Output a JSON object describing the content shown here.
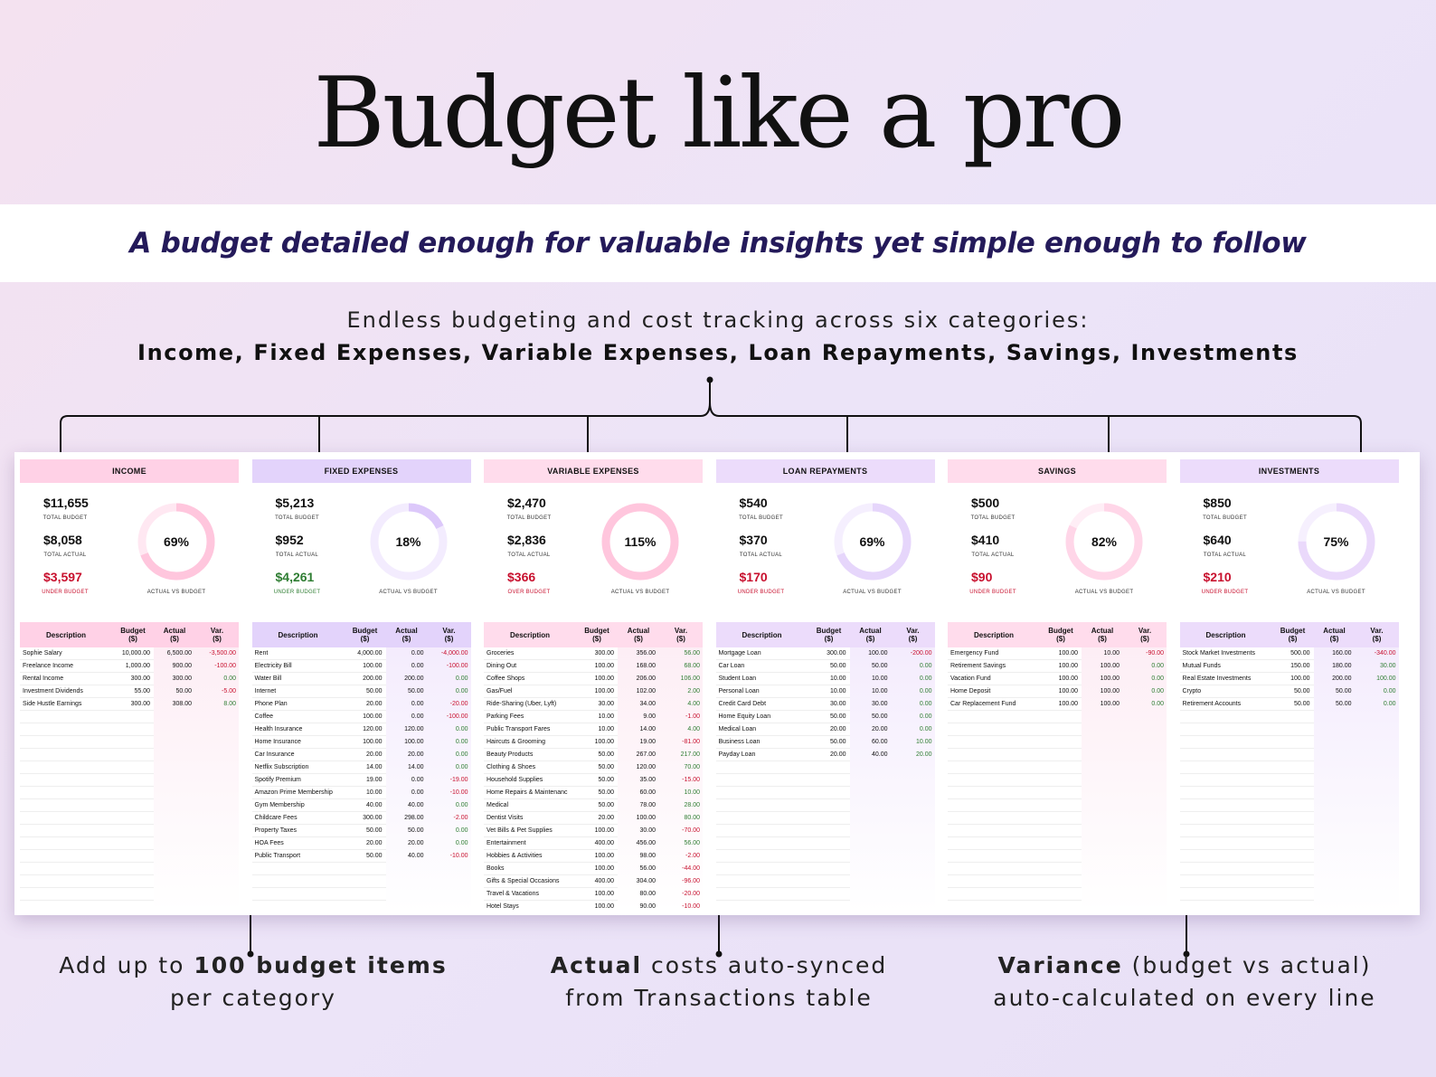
{
  "hero": {
    "title": "Budget like a pro"
  },
  "band": {
    "tagline": "A budget detailed enough for valuable insights yet simple enough to follow"
  },
  "intro": {
    "line1": "Endless budgeting and cost tracking across six categories:",
    "line2": "Income, Fixed Expenses, Variable Expenses, Loan Repayments, Savings, Investments"
  },
  "table_headers": {
    "description": "Description",
    "budget": "Budget",
    "budget_unit": "($)",
    "actual": "Actual",
    "actual_unit": "($)",
    "var": "Var.",
    "var_unit": "($)"
  },
  "labels": {
    "total_budget": "TOTAL BUDGET",
    "total_actual": "TOTAL ACTUAL",
    "actual_vs_budget": "ACTUAL VS BUDGET"
  },
  "colors": {
    "red": "#c8102e",
    "green": "#2e7d32",
    "pink": "#ffd1e6",
    "lavender": "#e3d3fb"
  },
  "panels": [
    {
      "title": "INCOME",
      "budget": "$11,655",
      "actual": "$8,058",
      "diff": "$3,597",
      "diff_label": "UNDER BUDGET",
      "diff_color": "red",
      "pct": "69%",
      "pct_value": 69,
      "ring": "#ffc6dd",
      "track": "#ffe8f2",
      "rows": [
        [
          "Sophie Salary",
          "10,000.00",
          "6,500.00",
          "-3,500.00"
        ],
        [
          "Freelance Income",
          "1,000.00",
          "900.00",
          "-100.00"
        ],
        [
          "Rental Income",
          "300.00",
          "300.00",
          "0.00"
        ],
        [
          "Investment Dividends",
          "55.00",
          "50.00",
          "-5.00"
        ],
        [
          "Side Hustle Earnings",
          "300.00",
          "308.00",
          "8.00"
        ]
      ]
    },
    {
      "title": "FIXED EXPENSES",
      "budget": "$5,213",
      "actual": "$952",
      "diff": "$4,261",
      "diff_label": "UNDER BUDGET",
      "diff_color": "green",
      "pct": "18%",
      "pct_value": 18,
      "ring": "#dcc8fa",
      "track": "#f3ecfe",
      "rows": [
        [
          "Rent",
          "4,000.00",
          "0.00",
          "-4,000.00"
        ],
        [
          "Electricity Bill",
          "100.00",
          "0.00",
          "-100.00"
        ],
        [
          "Water Bill",
          "200.00",
          "200.00",
          "0.00"
        ],
        [
          "Internet",
          "50.00",
          "50.00",
          "0.00"
        ],
        [
          "Phone Plan",
          "20.00",
          "0.00",
          "-20.00"
        ],
        [
          "Coffee",
          "100.00",
          "0.00",
          "-100.00"
        ],
        [
          "Health Insurance",
          "120.00",
          "120.00",
          "0.00"
        ],
        [
          "Home Insurance",
          "100.00",
          "100.00",
          "0.00"
        ],
        [
          "Car Insurance",
          "20.00",
          "20.00",
          "0.00"
        ],
        [
          "Netflix Subscription",
          "14.00",
          "14.00",
          "0.00"
        ],
        [
          "Spotify Premium",
          "19.00",
          "0.00",
          "-19.00"
        ],
        [
          "Amazon Prime Membership",
          "10.00",
          "0.00",
          "-10.00"
        ],
        [
          "Gym Membership",
          "40.00",
          "40.00",
          "0.00"
        ],
        [
          "Childcare Fees",
          "300.00",
          "298.00",
          "-2.00"
        ],
        [
          "Property Taxes",
          "50.00",
          "50.00",
          "0.00"
        ],
        [
          "HOA Fees",
          "20.00",
          "20.00",
          "0.00"
        ],
        [
          "Public Transport",
          "50.00",
          "40.00",
          "-10.00"
        ]
      ]
    },
    {
      "title": "VARIABLE EXPENSES",
      "budget": "$2,470",
      "actual": "$2,836",
      "diff": "$366",
      "diff_label": "OVER BUDGET",
      "diff_color": "red",
      "pct": "115%",
      "pct_value": 100,
      "ring": "#ffc6dd",
      "track": "#ffe8f2",
      "rows": [
        [
          "Groceries",
          "300.00",
          "356.00",
          "56.00"
        ],
        [
          "Dining Out",
          "100.00",
          "168.00",
          "68.00"
        ],
        [
          "Coffee Shops",
          "100.00",
          "206.00",
          "106.00"
        ],
        [
          "Gas/Fuel",
          "100.00",
          "102.00",
          "2.00"
        ],
        [
          "Ride-Sharing (Uber, Lyft)",
          "30.00",
          "34.00",
          "4.00"
        ],
        [
          "Parking Fees",
          "10.00",
          "9.00",
          "-1.00"
        ],
        [
          "Public Transport Fares",
          "10.00",
          "14.00",
          "4.00"
        ],
        [
          "Haircuts & Grooming",
          "100.00",
          "19.00",
          "-81.00"
        ],
        [
          "Beauty Products",
          "50.00",
          "267.00",
          "217.00"
        ],
        [
          "Clothing & Shoes",
          "50.00",
          "120.00",
          "70.00"
        ],
        [
          "Household Supplies",
          "50.00",
          "35.00",
          "-15.00"
        ],
        [
          "Home Repairs & Maintenanc",
          "50.00",
          "60.00",
          "10.00"
        ],
        [
          "Medical",
          "50.00",
          "78.00",
          "28.00"
        ],
        [
          "Dentist Visits",
          "20.00",
          "100.00",
          "80.00"
        ],
        [
          "Vet Bills & Pet Supplies",
          "100.00",
          "30.00",
          "-70.00"
        ],
        [
          "Entertainment",
          "400.00",
          "456.00",
          "56.00"
        ],
        [
          "Hobbies & Activities",
          "100.00",
          "98.00",
          "-2.00"
        ],
        [
          "Books",
          "100.00",
          "56.00",
          "-44.00"
        ],
        [
          "Gifts & Special Occasions",
          "400.00",
          "304.00",
          "-96.00"
        ],
        [
          "Travel & Vacations",
          "100.00",
          "80.00",
          "-20.00"
        ],
        [
          "Hotel Stays",
          "100.00",
          "90.00",
          "-10.00"
        ]
      ]
    },
    {
      "title": "LOAN REPAYMENTS",
      "budget": "$540",
      "actual": "$370",
      "diff": "$170",
      "diff_label": "UNDER BUDGET",
      "diff_color": "red",
      "pct": "69%",
      "pct_value": 69,
      "ring": "#e6d6fb",
      "track": "#f5effe",
      "rows": [
        [
          "Mortgage Loan",
          "300.00",
          "100.00",
          "-200.00"
        ],
        [
          "Car Loan",
          "50.00",
          "50.00",
          "0.00"
        ],
        [
          "Student Loan",
          "10.00",
          "10.00",
          "0.00"
        ],
        [
          "Personal Loan",
          "10.00",
          "10.00",
          "0.00"
        ],
        [
          "Credit Card Debt",
          "30.00",
          "30.00",
          "0.00"
        ],
        [
          "Home Equity Loan",
          "50.00",
          "50.00",
          "0.00"
        ],
        [
          "Medical Loan",
          "20.00",
          "20.00",
          "0.00"
        ],
        [
          "Business Loan",
          "50.00",
          "60.00",
          "10.00"
        ],
        [
          "Payday Loan",
          "20.00",
          "40.00",
          "20.00"
        ]
      ]
    },
    {
      "title": "SAVINGS",
      "budget": "$500",
      "actual": "$410",
      "diff": "$90",
      "diff_label": "UNDER BUDGET",
      "diff_color": "red",
      "pct": "82%",
      "pct_value": 82,
      "ring": "#ffd6e8",
      "track": "#ffeef6",
      "rows": [
        [
          "Emergency Fund",
          "100.00",
          "10.00",
          "-90.00"
        ],
        [
          "Retirement Savings",
          "100.00",
          "100.00",
          "0.00"
        ],
        [
          "Vacation Fund",
          "100.00",
          "100.00",
          "0.00"
        ],
        [
          "Home Deposit",
          "100.00",
          "100.00",
          "0.00"
        ],
        [
          "Car Replacement Fund",
          "100.00",
          "100.00",
          "0.00"
        ]
      ]
    },
    {
      "title": "INVESTMENTS",
      "budget": "$850",
      "actual": "$640",
      "diff": "$210",
      "diff_label": "UNDER BUDGET",
      "diff_color": "red",
      "pct": "75%",
      "pct_value": 75,
      "ring": "#ead9fb",
      "track": "#f6f0fe",
      "rows": [
        [
          "Stock Market Investments",
          "500.00",
          "160.00",
          "-340.00"
        ],
        [
          "Mutual Funds",
          "150.00",
          "180.00",
          "30.00"
        ],
        [
          "Real Estate Investments",
          "100.00",
          "200.00",
          "100.00"
        ],
        [
          "Crypto",
          "50.00",
          "50.00",
          "0.00"
        ],
        [
          "Retirement Accounts",
          "50.00",
          "50.00",
          "0.00"
        ]
      ]
    }
  ],
  "footer": {
    "left_pre": "Add up to ",
    "left_bold": "100 budget items",
    "left_post": "per category",
    "mid_bold": "Actual",
    "mid_pre": " costs auto-synced",
    "mid_post": "from Transactions table",
    "right_bold": "Variance",
    "right_pre": " (budget vs actual)",
    "right_post": "auto-calculated on every line"
  }
}
